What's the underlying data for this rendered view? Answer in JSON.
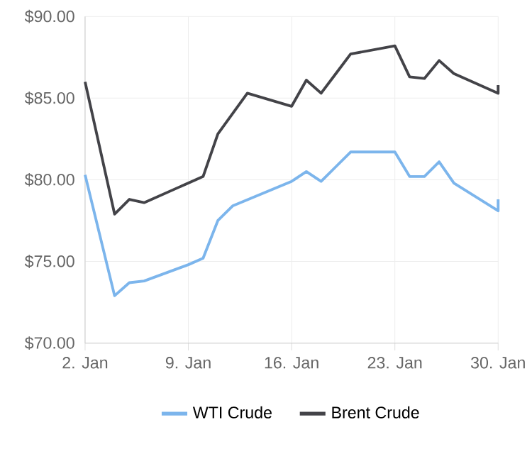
{
  "chart_data": {
    "type": "line",
    "xlim": [
      "--01-02",
      "--01-30"
    ],
    "xticks": [
      {
        "value": "--01-02",
        "label": "2. Jan"
      },
      {
        "value": "--01-09",
        "label": "9. Jan"
      },
      {
        "value": "--01-16",
        "label": "16. Jan"
      },
      {
        "value": "--01-23",
        "label": "23. Jan"
      },
      {
        "value": "--01-30",
        "label": "30. Jan"
      }
    ],
    "ylim": [
      70,
      90
    ],
    "yticks": [
      {
        "value": 70,
        "label": "$70.00"
      },
      {
        "value": 75,
        "label": "$75.00"
      },
      {
        "value": 80,
        "label": "$80.00"
      },
      {
        "value": 85,
        "label": "$85.00"
      },
      {
        "value": 90,
        "label": "$90.00"
      }
    ],
    "grid": true,
    "legend": "bottom",
    "marker": "none",
    "line_style": "solid",
    "series": [
      {
        "name": "WTI Crude",
        "color": "#7cb5ec",
        "x": [
          "--01-02",
          "--01-04",
          "--01-05",
          "--01-06",
          "--01-09",
          "--01-10",
          "--01-11",
          "--01-12",
          "--01-16",
          "--01-17",
          "--01-18",
          "--01-19",
          "--01-20",
          "--01-23",
          "--01-24",
          "--01-25",
          "--01-26",
          "--01-27",
          "--01-30",
          "--01-30"
        ],
        "values": [
          80.3,
          72.9,
          73.7,
          73.8,
          74.8,
          75.2,
          77.5,
          78.4,
          79.9,
          80.5,
          79.9,
          80.8,
          81.7,
          81.7,
          80.2,
          80.2,
          81.1,
          79.8,
          78.1,
          78.8
        ]
      },
      {
        "name": "Brent Crude",
        "color": "#434348",
        "x": [
          "--01-02",
          "--01-04",
          "--01-05",
          "--01-06",
          "--01-10",
          "--01-11",
          "--01-13",
          "--01-16",
          "--01-17",
          "--01-18",
          "--01-19",
          "--01-20",
          "--01-23",
          "--01-24",
          "--01-25",
          "--01-26",
          "--01-27",
          "--01-30",
          "--01-30"
        ],
        "values": [
          86.0,
          77.9,
          78.8,
          78.6,
          80.2,
          82.8,
          85.3,
          84.5,
          86.1,
          85.3,
          86.5,
          87.7,
          88.2,
          86.3,
          86.2,
          87.3,
          86.5,
          85.3,
          85.8
        ]
      }
    ]
  }
}
